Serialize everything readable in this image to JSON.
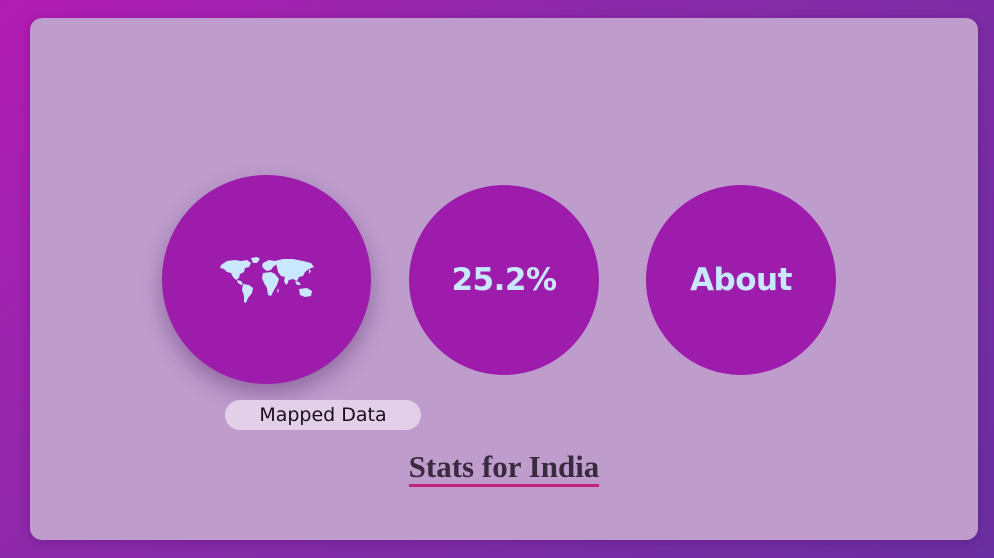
{
  "nav": {
    "map_icon": "world-map-icon",
    "map_tooltip": "Mapped Data",
    "stat_value": "25.2%",
    "about_label": "About"
  },
  "page": {
    "title": "Stats for India"
  },
  "colors": {
    "background_gradient_start": "#b21bb3",
    "background_gradient_end": "#6a2fa0",
    "panel": "#be9dcd",
    "circle": "#9e1cab",
    "circle_text": "#c9e7ff",
    "tooltip_bg": "#e3cfe8",
    "title_underline": "#c0237a"
  }
}
